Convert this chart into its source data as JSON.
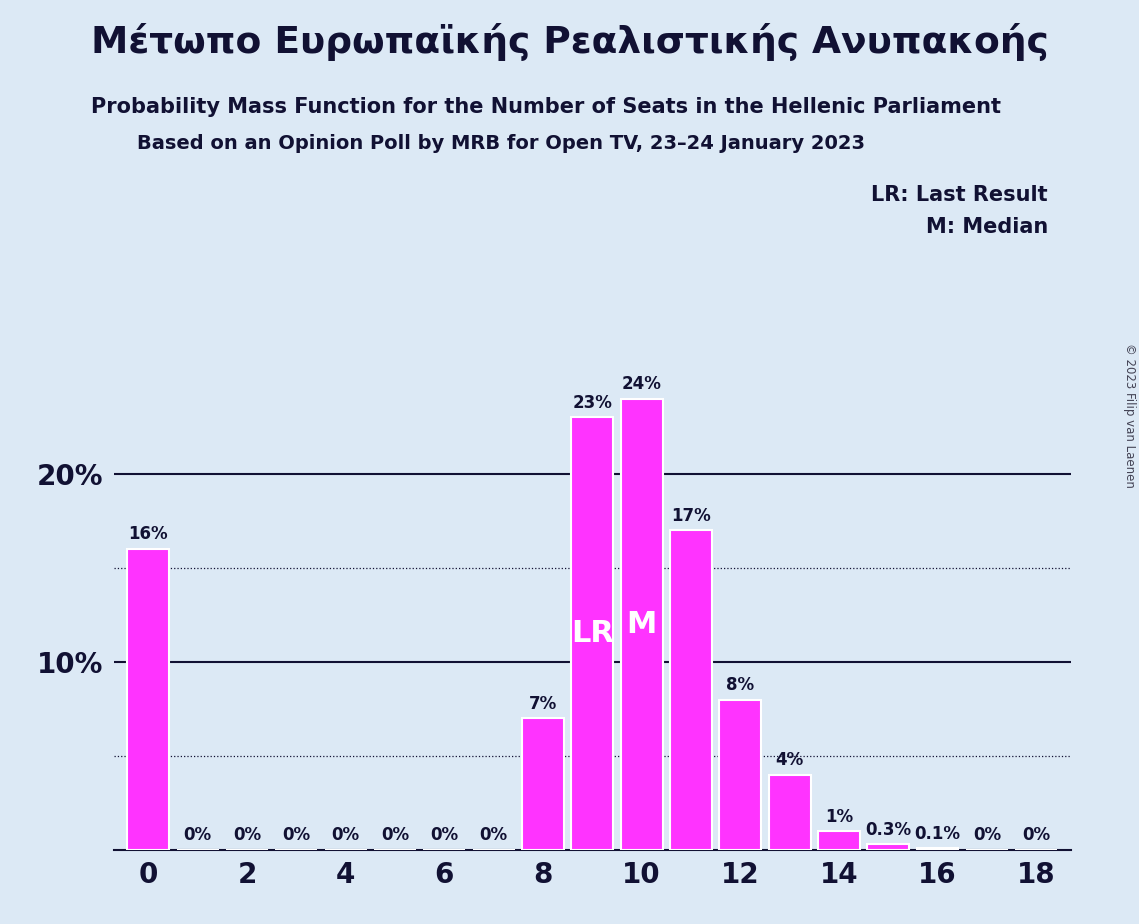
{
  "title_greek": "Μέτωπο Ευρωπαϊκής Ρεαλιστικής Ανυπακοής",
  "subtitle1": "Probability Mass Function for the Number of Seats in the Hellenic Parliament",
  "subtitle2": "Based on an Opinion Poll by MRB for Open TV, 23–24 January 2023",
  "copyright": "© 2023 Filip van Laenen",
  "legend_lr": "LR: Last Result",
  "legend_m": "M: Median",
  "seats": [
    0,
    1,
    2,
    3,
    4,
    5,
    6,
    7,
    8,
    9,
    10,
    11,
    12,
    13,
    14,
    15,
    16,
    17,
    18
  ],
  "probabilities": [
    16,
    0,
    0,
    0,
    0,
    0,
    0,
    0,
    7,
    23,
    24,
    17,
    8,
    4,
    1.0,
    0.3,
    0.1,
    0,
    0
  ],
  "bar_color": "#FF33FF",
  "lr_seat": 9,
  "median_seat": 10,
  "lr_label": "LR",
  "median_label": "M",
  "background_color": "#dce9f5",
  "text_color": "#111133",
  "bar_label_color_light": "#ffffff",
  "major_gridlines": [
    10,
    20
  ],
  "minor_gridlines": [
    5,
    15
  ],
  "ylim": [
    0,
    28
  ],
  "xlim": [
    -0.7,
    18.7
  ]
}
